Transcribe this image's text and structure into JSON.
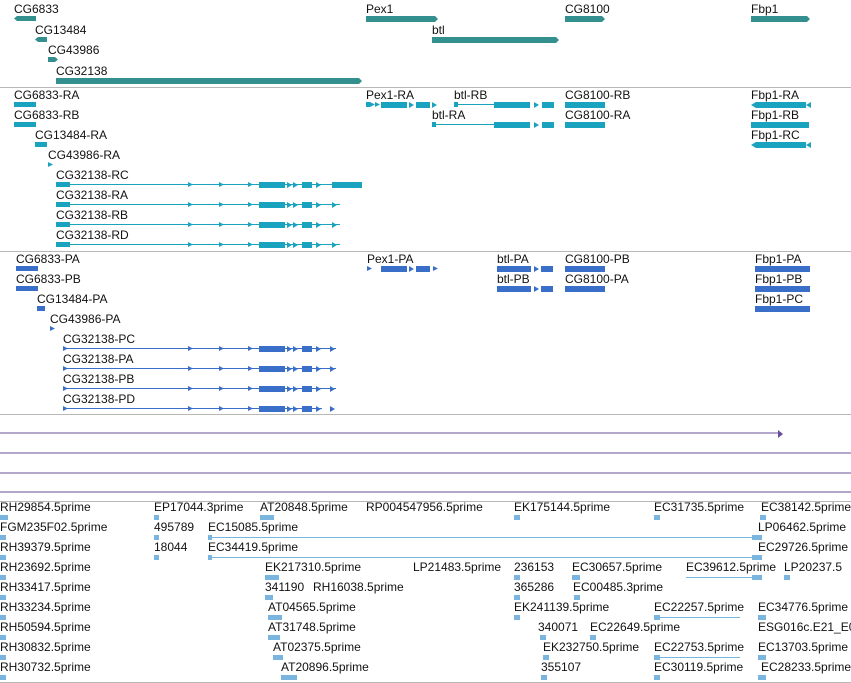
{
  "colors": {
    "genes": "#33908e",
    "transcripts": "#1aa3bf",
    "proteins": "#3a6fc9",
    "purple": "#6b4c9a",
    "ests": "#7ab5df",
    "separator": "#b8b8b8"
  },
  "tracks": {
    "genes": {
      "labels": [
        "CG6833",
        "CG13484",
        "CG43986",
        "CG32138",
        "Pex1",
        "btl",
        "CG8100",
        "Fbp1"
      ]
    },
    "transcripts": {
      "labels": [
        "CG6833-RA",
        "CG6833-RB",
        "CG13484-RA",
        "CG43986-RA",
        "CG32138-RC",
        "CG32138-RA",
        "CG32138-RB",
        "CG32138-RD",
        "Pex1-RA",
        "btl-RB",
        "btl-RA",
        "CG8100-RB",
        "CG8100-RA",
        "Fbp1-RA",
        "Fbp1-RB",
        "Fbp1-RC"
      ]
    },
    "proteins": {
      "labels": [
        "CG6833-PA",
        "CG6833-PB",
        "CG13484-PA",
        "CG43986-PA",
        "CG32138-PC",
        "CG32138-PA",
        "CG32138-PB",
        "CG32138-PD",
        "Pex1-PA",
        "btl-PA",
        "btl-PB",
        "CG8100-PB",
        "CG8100-PA",
        "Fbp1-PA",
        "Fbp1-PB",
        "Fbp1-PC"
      ]
    },
    "ests": {
      "labels": [
        "RH29854.5prime",
        "EP17044.3prime",
        "AT20848.5prime",
        "RP004547956.5prime",
        "EK175144.5prime",
        "EC31735.5prime",
        "EC38142.5prime",
        "FGM235F02.5prime",
        "495789",
        "EC15085.5prime",
        "LP06462.5prime",
        "RH39379.5prime",
        "18044",
        "EC34419.5prime",
        "EC29726.5prime",
        "RH23692.5prime",
        "EK217310.5prime",
        "LP21483.5prime",
        "236153",
        "EC30657.5prime",
        "EC39612.5prime",
        "LP20237.5",
        "RH33417.5prime",
        "341190",
        "RH16038.5prime",
        "365286",
        "EC00485.3prime",
        "RH33234.5prime",
        "AT04565.5prime",
        "EK241139.5prime",
        "EC22257.5prime",
        "EC34776.5prime",
        "RH50594.5prime",
        "AT31748.5prime",
        "340071",
        "EC22649.5prime",
        "RH30832.5prime",
        "AT02375.5prime",
        "EK232750.5prime",
        "EC22753.5prime",
        "ESG016c.E21_E0",
        "RH30732.5prime",
        "AT20896.5prime",
        "355107",
        "EC30119.5prime",
        "EC28233.5prime",
        "EC13703.5prime"
      ]
    }
  }
}
